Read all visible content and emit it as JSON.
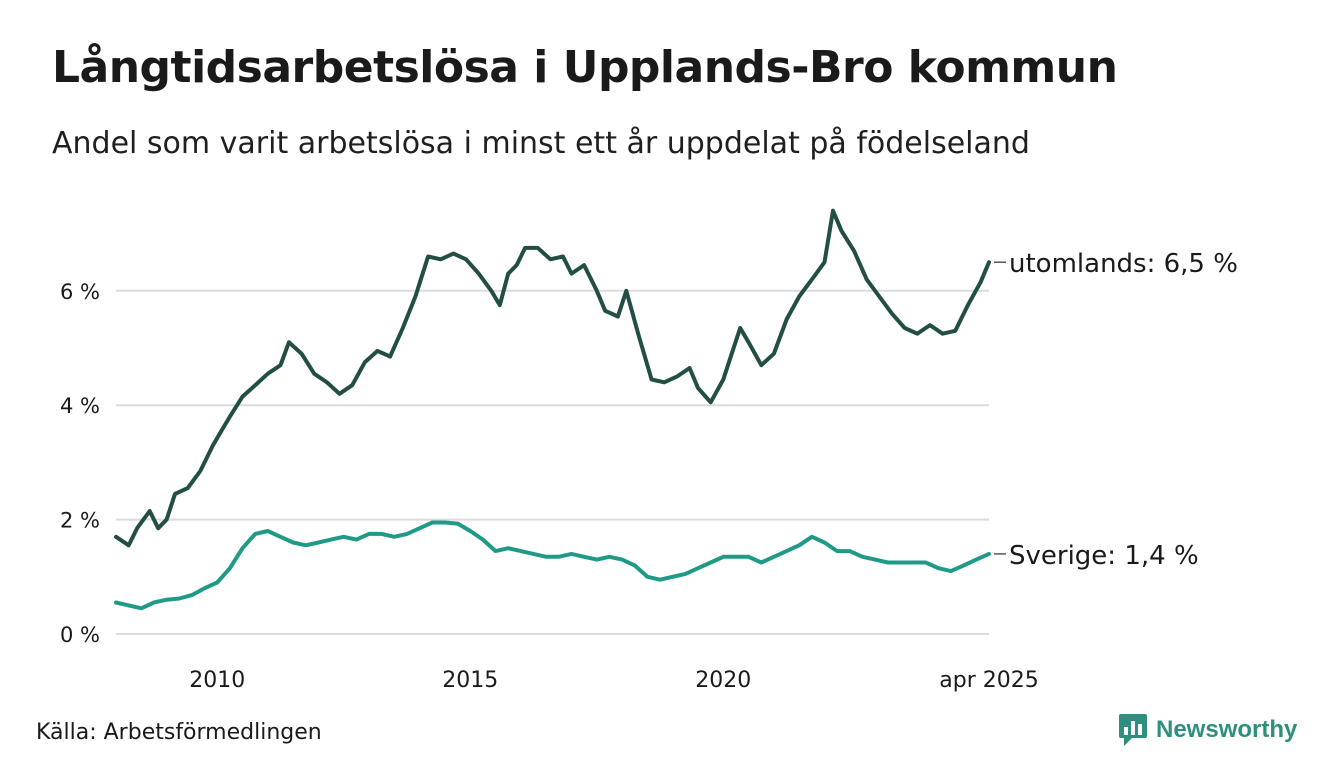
{
  "title": "Långtidsarbetslösa i Upplands-Bro kommun",
  "subtitle": "Andel som varit arbetslösa i minst ett år uppdelat på födelseland",
  "source": "Källa: Arbetsförmedlingen",
  "brand": "Newsworthy",
  "colors": {
    "utomlands": "#234e46",
    "sverige": "#1f9a87",
    "grid": "#dcdcdc",
    "text": "#1a1a1a",
    "brand": "#2f8f7d"
  },
  "chart_data": {
    "type": "line",
    "x_start": "2008-01",
    "x_end": "2025-04",
    "x_ticks": [
      {
        "x": "2010-01",
        "label": "2010"
      },
      {
        "x": "2015-01",
        "label": "2015"
      },
      {
        "x": "2020-01",
        "label": "2020"
      },
      {
        "x": "2025-04",
        "label": "apr 2025"
      }
    ],
    "y_ticks": [
      {
        "value": 0,
        "label": "0 %"
      },
      {
        "value": 2,
        "label": "2 %"
      },
      {
        "value": 4,
        "label": "4 %"
      },
      {
        "value": 6,
        "label": "6 %"
      }
    ],
    "ylim": [
      0,
      7.6
    ],
    "grid": true,
    "series": [
      {
        "name": "utomlands",
        "end_label": "utomlands: 6,5 %",
        "points": [
          [
            "2008-01",
            1.7
          ],
          [
            "2008-04",
            1.55
          ],
          [
            "2008-06",
            1.85
          ],
          [
            "2008-09",
            2.15
          ],
          [
            "2008-11",
            1.85
          ],
          [
            "2009-01",
            2.0
          ],
          [
            "2009-03",
            2.45
          ],
          [
            "2009-06",
            2.55
          ],
          [
            "2009-09",
            2.85
          ],
          [
            "2009-12",
            3.3
          ],
          [
            "2010-02",
            3.55
          ],
          [
            "2010-04",
            3.8
          ],
          [
            "2010-07",
            4.15
          ],
          [
            "2010-10",
            4.35
          ],
          [
            "2011-01",
            4.55
          ],
          [
            "2011-04",
            4.7
          ],
          [
            "2011-06",
            5.1
          ],
          [
            "2011-09",
            4.9
          ],
          [
            "2011-12",
            4.55
          ],
          [
            "2012-03",
            4.4
          ],
          [
            "2012-06",
            4.2
          ],
          [
            "2012-09",
            4.35
          ],
          [
            "2012-12",
            4.75
          ],
          [
            "2013-03",
            4.95
          ],
          [
            "2013-06",
            4.85
          ],
          [
            "2013-09",
            5.35
          ],
          [
            "2013-12",
            5.9
          ],
          [
            "2014-03",
            6.6
          ],
          [
            "2014-06",
            6.55
          ],
          [
            "2014-09",
            6.65
          ],
          [
            "2014-12",
            6.55
          ],
          [
            "2015-03",
            6.3
          ],
          [
            "2015-06",
            6.0
          ],
          [
            "2015-08",
            5.75
          ],
          [
            "2015-10",
            6.3
          ],
          [
            "2015-12",
            6.45
          ],
          [
            "2016-02",
            6.75
          ],
          [
            "2016-05",
            6.75
          ],
          [
            "2016-08",
            6.55
          ],
          [
            "2016-11",
            6.6
          ],
          [
            "2017-01",
            6.3
          ],
          [
            "2017-04",
            6.45
          ],
          [
            "2017-07",
            6.0
          ],
          [
            "2017-09",
            5.65
          ],
          [
            "2017-12",
            5.55
          ],
          [
            "2018-02",
            6.0
          ],
          [
            "2018-05",
            5.2
          ],
          [
            "2018-08",
            4.45
          ],
          [
            "2018-11",
            4.4
          ],
          [
            "2019-02",
            4.5
          ],
          [
            "2019-05",
            4.65
          ],
          [
            "2019-07",
            4.3
          ],
          [
            "2019-10",
            4.05
          ],
          [
            "2020-01",
            4.45
          ],
          [
            "2020-03",
            4.9
          ],
          [
            "2020-05",
            5.35
          ],
          [
            "2020-07",
            5.1
          ],
          [
            "2020-10",
            4.7
          ],
          [
            "2021-01",
            4.9
          ],
          [
            "2021-04",
            5.5
          ],
          [
            "2021-07",
            5.9
          ],
          [
            "2021-10",
            6.2
          ],
          [
            "2022-01",
            6.5
          ],
          [
            "2022-03",
            7.4
          ],
          [
            "2022-05",
            7.05
          ],
          [
            "2022-08",
            6.7
          ],
          [
            "2022-11",
            6.2
          ],
          [
            "2023-02",
            5.9
          ],
          [
            "2023-05",
            5.6
          ],
          [
            "2023-08",
            5.35
          ],
          [
            "2023-11",
            5.25
          ],
          [
            "2024-02",
            5.4
          ],
          [
            "2024-05",
            5.25
          ],
          [
            "2024-08",
            5.3
          ],
          [
            "2024-11",
            5.75
          ],
          [
            "2025-02",
            6.15
          ],
          [
            "2025-04",
            6.5
          ]
        ]
      },
      {
        "name": "Sverige",
        "end_label": "Sverige: 1,4 %",
        "points": [
          [
            "2008-01",
            0.55
          ],
          [
            "2008-04",
            0.5
          ],
          [
            "2008-07",
            0.45
          ],
          [
            "2008-10",
            0.55
          ],
          [
            "2009-01",
            0.6
          ],
          [
            "2009-04",
            0.62
          ],
          [
            "2009-07",
            0.68
          ],
          [
            "2009-10",
            0.8
          ],
          [
            "2010-01",
            0.9
          ],
          [
            "2010-04",
            1.15
          ],
          [
            "2010-07",
            1.5
          ],
          [
            "2010-10",
            1.75
          ],
          [
            "2011-01",
            1.8
          ],
          [
            "2011-04",
            1.7
          ],
          [
            "2011-07",
            1.6
          ],
          [
            "2011-10",
            1.55
          ],
          [
            "2012-01",
            1.6
          ],
          [
            "2012-04",
            1.65
          ],
          [
            "2012-07",
            1.7
          ],
          [
            "2012-10",
            1.65
          ],
          [
            "2013-01",
            1.75
          ],
          [
            "2013-04",
            1.75
          ],
          [
            "2013-07",
            1.7
          ],
          [
            "2013-10",
            1.75
          ],
          [
            "2014-01",
            1.85
          ],
          [
            "2014-04",
            1.95
          ],
          [
            "2014-07",
            1.95
          ],
          [
            "2014-10",
            1.93
          ],
          [
            "2015-01",
            1.8
          ],
          [
            "2015-04",
            1.65
          ],
          [
            "2015-07",
            1.45
          ],
          [
            "2015-10",
            1.5
          ],
          [
            "2016-01",
            1.45
          ],
          [
            "2016-04",
            1.4
          ],
          [
            "2016-07",
            1.35
          ],
          [
            "2016-10",
            1.35
          ],
          [
            "2017-01",
            1.4
          ],
          [
            "2017-04",
            1.35
          ],
          [
            "2017-07",
            1.3
          ],
          [
            "2017-10",
            1.35
          ],
          [
            "2018-01",
            1.3
          ],
          [
            "2018-04",
            1.2
          ],
          [
            "2018-07",
            1.0
          ],
          [
            "2018-10",
            0.95
          ],
          [
            "2019-01",
            1.0
          ],
          [
            "2019-04",
            1.05
          ],
          [
            "2019-07",
            1.15
          ],
          [
            "2019-10",
            1.25
          ],
          [
            "2020-01",
            1.35
          ],
          [
            "2020-04",
            1.35
          ],
          [
            "2020-07",
            1.35
          ],
          [
            "2020-10",
            1.25
          ],
          [
            "2021-01",
            1.35
          ],
          [
            "2021-04",
            1.45
          ],
          [
            "2021-07",
            1.55
          ],
          [
            "2021-10",
            1.7
          ],
          [
            "2022-01",
            1.6
          ],
          [
            "2022-04",
            1.45
          ],
          [
            "2022-07",
            1.45
          ],
          [
            "2022-10",
            1.35
          ],
          [
            "2023-01",
            1.3
          ],
          [
            "2023-04",
            1.25
          ],
          [
            "2023-07",
            1.25
          ],
          [
            "2023-10",
            1.25
          ],
          [
            "2024-01",
            1.25
          ],
          [
            "2024-04",
            1.15
          ],
          [
            "2024-07",
            1.1
          ],
          [
            "2024-10",
            1.2
          ],
          [
            "2025-01",
            1.3
          ],
          [
            "2025-04",
            1.4
          ]
        ]
      }
    ]
  }
}
